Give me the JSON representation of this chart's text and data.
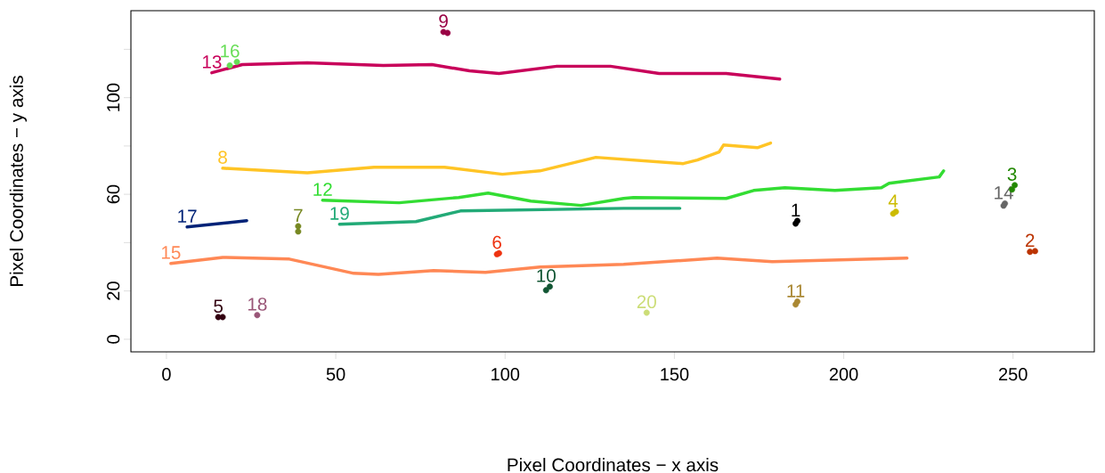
{
  "chart_data": {
    "type": "line",
    "xlabel": "Pixel Coordinates − x axis",
    "ylabel": "Pixel Coordinates − y axis",
    "xlim": [
      -10.5,
      274
    ],
    "ylim": [
      -5.2,
      136
    ],
    "xticks": [
      0,
      50,
      100,
      150,
      200,
      250
    ],
    "yticks": [
      0,
      20,
      {
        "value": 40,
        "label": null
      },
      60,
      {
        "value": 80,
        "label": null
      },
      100,
      {
        "value": 120,
        "label": null
      }
    ],
    "series": [
      {
        "name": "1",
        "type": "scatter",
        "color": "#000000",
        "x": [
          185.8,
          186.3
        ],
        "values": [
          47.9,
          49.0
        ]
      },
      {
        "name": "2",
        "type": "scatter",
        "color": "#bb3300",
        "x": [
          255.0,
          256.5
        ],
        "values": [
          36.2,
          36.5
        ]
      },
      {
        "name": "3",
        "type": "scatter",
        "color": "#228800",
        "x": [
          249.7,
          250.5
        ],
        "values": [
          62.0,
          63.8
        ]
      },
      {
        "name": "4",
        "type": "scatter",
        "color": "#ccbb00",
        "x": [
          214.6,
          215.4
        ],
        "values": [
          52.0,
          52.8
        ]
      },
      {
        "name": "5",
        "type": "scatter",
        "color": "#330011",
        "x": [
          15.3,
          16.6
        ],
        "values": [
          9.2,
          9.2
        ]
      },
      {
        "name": "6",
        "type": "scatter",
        "color": "#ee3311",
        "x": [
          97.6,
          98.2
        ],
        "values": [
          35.2,
          35.6
        ]
      },
      {
        "name": "7",
        "type": "scatter",
        "color": "#778822",
        "x": [
          38.9,
          38.9
        ],
        "values": [
          44.6,
          46.8
        ]
      },
      {
        "name": "8",
        "color": "#ffc425",
        "x": [
          16.6,
          41.6,
          61.3,
          82.1,
          99.2,
          110.3,
          126.8,
          152.6,
          156.8,
          163.2,
          164.5,
          174.5,
          178.4
        ],
        "values": [
          70.8,
          68.9,
          71.2,
          71.2,
          68.3,
          69.7,
          75.3,
          72.7,
          74.2,
          77.5,
          80.4,
          79.3,
          81.2
        ]
      },
      {
        "name": "9",
        "type": "scatter",
        "color": "#990044",
        "x": [
          81.8,
          83.0
        ],
        "values": [
          127.2,
          126.8
        ]
      },
      {
        "name": "10",
        "type": "scatter",
        "color": "#115533",
        "x": [
          112.1,
          113.2
        ],
        "values": [
          20.3,
          21.8
        ]
      },
      {
        "name": "11",
        "type": "scatter",
        "color": "#aa8833",
        "x": [
          185.8,
          186.3
        ],
        "values": [
          14.4,
          15.6
        ]
      },
      {
        "name": "12",
        "color": "#33dd33",
        "x": [
          46.1,
          68.7,
          86.3,
          95.0,
          107.6,
          122.4,
          135.0,
          137.9,
          165.3,
          173.4,
          182.6,
          197.4,
          211.1,
          213.4,
          228.2,
          229.5
        ],
        "values": [
          57.6,
          56.5,
          58.7,
          60.5,
          57.2,
          55.4,
          58.3,
          58.7,
          58.3,
          61.6,
          62.7,
          61.6,
          62.7,
          64.6,
          67.2,
          69.7
        ]
      },
      {
        "name": "13",
        "color": "#c8005a",
        "x": [
          13.4,
          22.4,
          41.6,
          64.0,
          78.4,
          89.5,
          98.2,
          115.3,
          131.1,
          145.5,
          165.3,
          181.1
        ],
        "values": [
          110.3,
          113.7,
          114.4,
          113.3,
          113.7,
          111.1,
          110.0,
          113.0,
          113.0,
          110.0,
          110.0,
          107.7
        ]
      },
      {
        "name": "14",
        "type": "scatter",
        "color": "#666666",
        "x": [
          247.2,
          247.6
        ],
        "values": [
          55.3,
          56.2
        ]
      },
      {
        "name": "15",
        "color": "#ff8855",
        "x": [
          1.3,
          16.6,
          36.3,
          55.3,
          62.6,
          78.9,
          94.2,
          110.3,
          135.0,
          162.6,
          178.9,
          218.7
        ],
        "values": [
          31.4,
          33.9,
          33.2,
          27.3,
          26.9,
          28.4,
          27.7,
          29.9,
          31.0,
          33.6,
          32.1,
          33.6
        ]
      },
      {
        "name": "16",
        "type": "scatter",
        "color": "#66dd55",
        "x": [
          18.7,
          20.8
        ],
        "values": [
          113.3,
          114.8
        ]
      },
      {
        "name": "17",
        "color": "#002277",
        "x": [
          6.1,
          23.7
        ],
        "values": [
          46.5,
          49.1
        ]
      },
      {
        "name": "18",
        "type": "scatter",
        "color": "#995577",
        "x": [
          26.8
        ],
        "values": [
          10.0
        ]
      },
      {
        "name": "19",
        "color": "#22aa77",
        "x": [
          51.1,
          73.7,
          86.8,
          135.0,
          151.6
        ],
        "values": [
          47.6,
          48.7,
          53.1,
          54.2,
          54.2
        ]
      },
      {
        "name": "20",
        "type": "scatter",
        "color": "#ccdd77",
        "x": [
          141.8
        ],
        "values": [
          11.0
        ]
      }
    ]
  }
}
